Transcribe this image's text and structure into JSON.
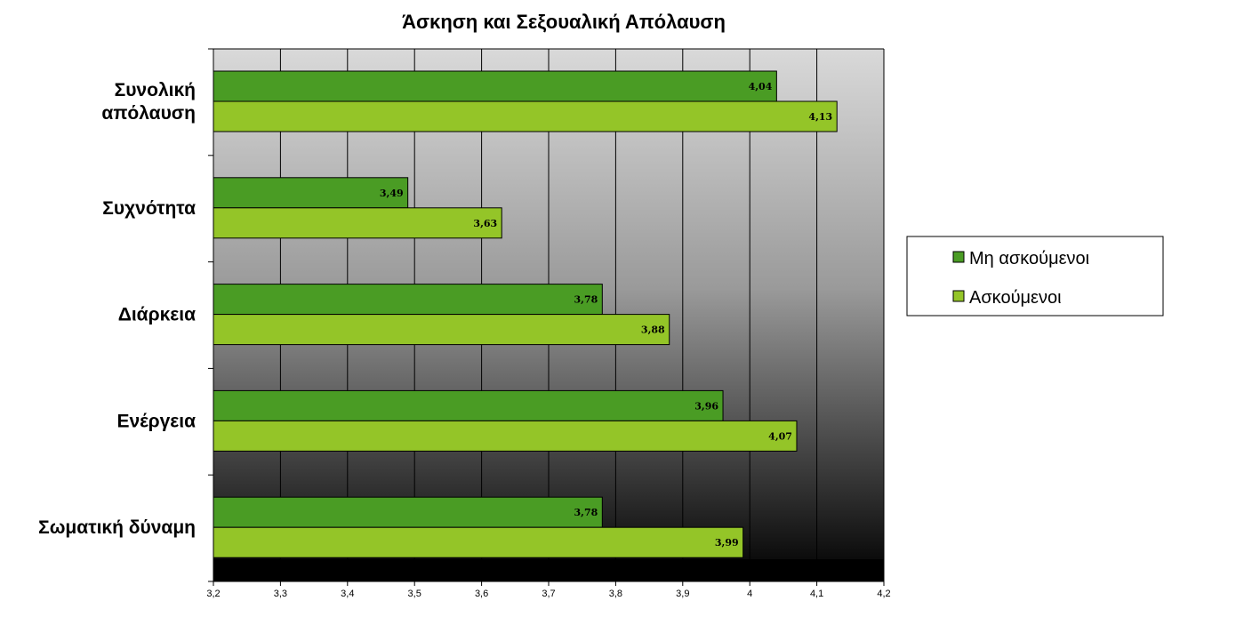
{
  "chart_data": {
    "type": "bar",
    "orientation": "horizontal",
    "title": "Άσκηση και Σεξουαλική Απόλαυση",
    "categories": [
      [
        "Συνολική",
        "απόλαυση"
      ],
      [
        "Συχνότητα"
      ],
      [
        "Διάρκεια"
      ],
      [
        "Ενέργεια"
      ],
      [
        "Σωματική δύναμη"
      ]
    ],
    "series": [
      {
        "name": "Μη ασκούμενοι",
        "color": "#4a9c24",
        "values": [
          4.04,
          3.49,
          3.78,
          3.96,
          3.78
        ],
        "labels": [
          "4,04",
          "3,49",
          "3,78",
          "3,96",
          "3,78"
        ]
      },
      {
        "name": "Ασκούμενοι",
        "color": "#94c528",
        "values": [
          4.13,
          3.63,
          3.88,
          4.07,
          3.99
        ],
        "labels": [
          "4,13",
          "3,63",
          "3,88",
          "4,07",
          "3,99"
        ]
      }
    ],
    "xlim": [
      3.2,
      4.2
    ],
    "xticks": [
      3.2,
      3.3,
      3.4,
      3.5,
      3.6,
      3.7,
      3.8,
      3.9,
      4.0,
      4.1,
      4.2
    ],
    "xtick_labels": [
      "3,2",
      "3,3",
      "3,4",
      "3,5",
      "3,6",
      "3,7",
      "3,8",
      "3,9",
      "4",
      "4,1",
      "4,2"
    ],
    "grid": true,
    "plot_background": "gradient light gray to black",
    "legend_position": "right"
  }
}
